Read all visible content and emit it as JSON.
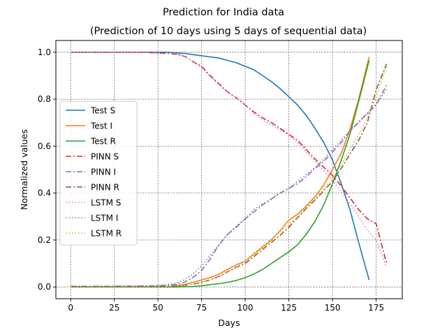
{
  "chart_data": {
    "type": "line",
    "title": "Prediction for India data",
    "subtitle": "(Prediction of 10 days using 5 days of sequential data)",
    "xlabel": "Days",
    "ylabel": "Normalized values",
    "xlim": [
      -8.5,
      190
    ],
    "ylim": [
      -0.05,
      1.05
    ],
    "xticks": [
      0,
      25,
      50,
      75,
      100,
      125,
      150,
      175
    ],
    "yticks": [
      0.0,
      0.2,
      0.4,
      0.6,
      0.8,
      1.0
    ],
    "xtick_labels": [
      "0",
      "25",
      "50",
      "75",
      "100",
      "125",
      "150",
      "175"
    ],
    "ytick_labels": [
      "0.0",
      "0.2",
      "0.4",
      "0.6",
      "0.8",
      "1.0"
    ],
    "grid": true,
    "legend_position": "center-left",
    "series": [
      {
        "name": "Test S",
        "color": "#1f77b4",
        "dash": "solid",
        "x": [
          0,
          20,
          40,
          55,
          65,
          70,
          75,
          80,
          85,
          90,
          95,
          100,
          105,
          110,
          115,
          120,
          125,
          130,
          135,
          140,
          145,
          150,
          155,
          160,
          165,
          171
        ],
        "y": [
          1.0,
          1.0,
          1.0,
          1.0,
          0.995,
          0.99,
          0.985,
          0.98,
          0.975,
          0.965,
          0.955,
          0.94,
          0.925,
          0.9,
          0.875,
          0.845,
          0.81,
          0.775,
          0.73,
          0.675,
          0.615,
          0.54,
          0.44,
          0.33,
          0.19,
          0.03
        ]
      },
      {
        "name": "Test I",
        "color": "#ff7f0e",
        "dash": "solid",
        "x": [
          0,
          20,
          40,
          55,
          60,
          65,
          70,
          75,
          80,
          85,
          90,
          95,
          100,
          105,
          110,
          115,
          120,
          125,
          130,
          135,
          140,
          145,
          150,
          155,
          160,
          165,
          171
        ],
        "y": [
          0.0,
          0.0,
          0.0,
          0.0,
          0.005,
          0.01,
          0.02,
          0.03,
          0.04,
          0.055,
          0.075,
          0.095,
          0.11,
          0.14,
          0.17,
          0.2,
          0.24,
          0.285,
          0.31,
          0.345,
          0.385,
          0.435,
          0.5,
          0.57,
          0.67,
          0.8,
          0.98
        ]
      },
      {
        "name": "Test R",
        "color": "#2ca02c",
        "dash": "solid",
        "x": [
          0,
          20,
          40,
          55,
          60,
          65,
          70,
          75,
          80,
          85,
          90,
          95,
          100,
          105,
          110,
          115,
          120,
          125,
          130,
          135,
          140,
          145,
          150,
          155,
          160,
          165,
          171
        ],
        "y": [
          0.0,
          0.0,
          0.0,
          0.0,
          0.0,
          0.001,
          0.002,
          0.005,
          0.01,
          0.014,
          0.02,
          0.028,
          0.04,
          0.055,
          0.075,
          0.1,
          0.125,
          0.15,
          0.18,
          0.225,
          0.28,
          0.35,
          0.44,
          0.54,
          0.65,
          0.79,
          0.965
        ]
      },
      {
        "name": "PINN S",
        "color": "#d62728",
        "dash": "8,3,2,3",
        "x": [
          0,
          20,
          40,
          55,
          62,
          66,
          70,
          75,
          80,
          85,
          90,
          95,
          100,
          105,
          110,
          115,
          120,
          125,
          130,
          135,
          140,
          145,
          150,
          155,
          160,
          165,
          170,
          175,
          181
        ],
        "y": [
          1.0,
          1.0,
          1.0,
          0.995,
          0.99,
          0.98,
          0.96,
          0.94,
          0.9,
          0.865,
          0.83,
          0.805,
          0.775,
          0.745,
          0.72,
          0.7,
          0.675,
          0.65,
          0.625,
          0.585,
          0.545,
          0.51,
          0.475,
          0.43,
          0.38,
          0.33,
          0.29,
          0.27,
          0.1
        ]
      },
      {
        "name": "PINN I",
        "color": "#9467bd",
        "dash": "8,3,2,3",
        "x": [
          0,
          20,
          40,
          50,
          55,
          60,
          65,
          70,
          75,
          80,
          85,
          90,
          95,
          100,
          105,
          110,
          115,
          120,
          125,
          130,
          135,
          140,
          145,
          150,
          155,
          160,
          165,
          170,
          175,
          181
        ],
        "y": [
          0.003,
          0.003,
          0.004,
          0.005,
          0.007,
          0.01,
          0.02,
          0.04,
          0.07,
          0.12,
          0.18,
          0.225,
          0.255,
          0.29,
          0.32,
          0.35,
          0.375,
          0.4,
          0.42,
          0.44,
          0.47,
          0.505,
          0.535,
          0.575,
          0.615,
          0.665,
          0.7,
          0.74,
          0.775,
          0.86
        ]
      },
      {
        "name": "PINN R",
        "color": "#8c564b",
        "dash": "8,3,2,3",
        "x": [
          0,
          20,
          40,
          55,
          60,
          65,
          70,
          75,
          80,
          85,
          90,
          95,
          100,
          105,
          110,
          115,
          120,
          125,
          130,
          135,
          140,
          145,
          150,
          155,
          160,
          165,
          170,
          175,
          181
        ],
        "y": [
          0.0,
          0.0,
          0.0,
          0.002,
          0.004,
          0.007,
          0.012,
          0.02,
          0.03,
          0.045,
          0.065,
          0.085,
          0.1,
          0.13,
          0.16,
          0.19,
          0.22,
          0.255,
          0.295,
          0.335,
          0.37,
          0.41,
          0.45,
          0.505,
          0.565,
          0.625,
          0.7,
          0.84,
          0.95
        ]
      },
      {
        "name": "LSTM S",
        "color": "#e377c2",
        "dash": "1.5,3",
        "x": [
          0,
          20,
          40,
          55,
          62,
          66,
          70,
          75,
          80,
          85,
          90,
          95,
          100,
          105,
          110,
          115,
          120,
          125,
          130,
          135,
          140,
          145,
          150,
          155,
          160,
          165,
          170,
          175,
          181
        ],
        "y": [
          1.0,
          1.0,
          1.0,
          0.995,
          0.99,
          0.98,
          0.96,
          0.935,
          0.895,
          0.86,
          0.83,
          0.805,
          0.775,
          0.74,
          0.71,
          0.69,
          0.67,
          0.645,
          0.615,
          0.575,
          0.535,
          0.495,
          0.455,
          0.405,
          0.355,
          0.3,
          0.24,
          0.2,
          0.085
        ]
      },
      {
        "name": "LSTM I",
        "color": "#7f7f7f",
        "dash": "1.5,3",
        "x": [
          0,
          20,
          40,
          50,
          55,
          60,
          65,
          70,
          75,
          80,
          85,
          90,
          95,
          100,
          105,
          110,
          115,
          120,
          125,
          130,
          135,
          140,
          145,
          150,
          155,
          160,
          165,
          170,
          175,
          181
        ],
        "y": [
          0.002,
          0.003,
          0.004,
          0.006,
          0.01,
          0.015,
          0.03,
          0.055,
          0.09,
          0.135,
          0.18,
          0.225,
          0.26,
          0.29,
          0.33,
          0.355,
          0.375,
          0.4,
          0.42,
          0.45,
          0.48,
          0.51,
          0.545,
          0.585,
          0.625,
          0.665,
          0.705,
          0.74,
          0.78,
          0.84
        ]
      },
      {
        "name": "LSTM R",
        "color": "#bcbd22",
        "dash": "1.5,3",
        "x": [
          0,
          20,
          40,
          55,
          60,
          65,
          70,
          75,
          80,
          85,
          90,
          95,
          100,
          105,
          110,
          115,
          120,
          125,
          130,
          135,
          140,
          145,
          150,
          155,
          160,
          165,
          170,
          175,
          181
        ],
        "y": [
          0.0,
          0.0,
          0.0,
          0.002,
          0.004,
          0.007,
          0.012,
          0.02,
          0.03,
          0.045,
          0.065,
          0.085,
          0.11,
          0.145,
          0.175,
          0.205,
          0.235,
          0.265,
          0.3,
          0.34,
          0.375,
          0.42,
          0.46,
          0.52,
          0.585,
          0.65,
          0.72,
          0.81,
          0.94
        ]
      }
    ]
  }
}
